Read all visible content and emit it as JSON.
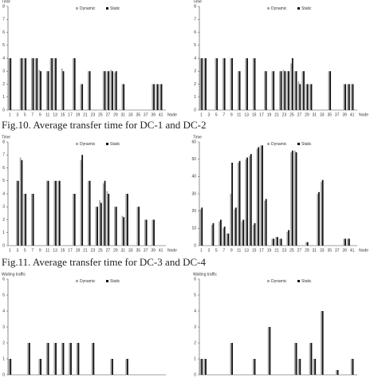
{
  "chart_data": [
    {
      "type": "bar",
      "y_label": "Time",
      "x_label": "Node",
      "categories": [
        1,
        null,
        3,
        null,
        5,
        null,
        7,
        null,
        9,
        null,
        11,
        null,
        13,
        null,
        15,
        null,
        17,
        null,
        19,
        null,
        21,
        null,
        23,
        null,
        25,
        null,
        27,
        null,
        29,
        null,
        31,
        null,
        33,
        null,
        35,
        null,
        37,
        null,
        39,
        null,
        41
      ],
      "ylim": [
        0,
        8
      ],
      "yticks": [
        0,
        1,
        2,
        3,
        4,
        5,
        6,
        7,
        8
      ],
      "series": [
        {
          "name": "Dynamic",
          "color": "#aaaaaa",
          "values": [
            4,
            0,
            0,
            4,
            4,
            0,
            4,
            4,
            3.1,
            0,
            3,
            4,
            4,
            0,
            3.2,
            0,
            0,
            4,
            0,
            2,
            0,
            3,
            0,
            0,
            0,
            3,
            3,
            3.1,
            2.9,
            0,
            2,
            0,
            0,
            0,
            0,
            0,
            0,
            0,
            2,
            2,
            2
          ]
        },
        {
          "name": "Static",
          "color": "#111111",
          "values": [
            4,
            0,
            0,
            4,
            4,
            0,
            4,
            4,
            3,
            0,
            3,
            4,
            4,
            0,
            3,
            0,
            0,
            4,
            0,
            2,
            0,
            3,
            0,
            0,
            0,
            3,
            3,
            3,
            3,
            0,
            2,
            0,
            0,
            0,
            0,
            0,
            0,
            0,
            2,
            2,
            2
          ]
        }
      ]
    },
    {
      "type": "bar",
      "y_label": "Time",
      "x_label": "Node",
      "categories": [
        1,
        null,
        3,
        null,
        5,
        null,
        7,
        null,
        9,
        null,
        11,
        null,
        13,
        null,
        15,
        null,
        17,
        null,
        19,
        null,
        21,
        null,
        23,
        null,
        25,
        null,
        27,
        null,
        29,
        null,
        31,
        null,
        33,
        null,
        35,
        null,
        37,
        null,
        39,
        null,
        41
      ],
      "ylim": [
        0,
        8
      ],
      "yticks": [
        0,
        1,
        2,
        3,
        4,
        5,
        6,
        7,
        8
      ],
      "series": [
        {
          "name": "Dynamic",
          "color": "#aaaaaa",
          "values": [
            4,
            4,
            0,
            0,
            4,
            0,
            4,
            0,
            4,
            0,
            3,
            0,
            4,
            0,
            4,
            0,
            0,
            3,
            0,
            3,
            0,
            3,
            3.1,
            3,
            3.6,
            3,
            2.2,
            3,
            2,
            2,
            0,
            0,
            0,
            0,
            3,
            0,
            0,
            0,
            2,
            2,
            2
          ]
        },
        {
          "name": "Static",
          "color": "#111111",
          "values": [
            4,
            4,
            0,
            0,
            4,
            0,
            4,
            0,
            4,
            0,
            3,
            0,
            4,
            0,
            4,
            0,
            0,
            3,
            0,
            3,
            0,
            3,
            3,
            3,
            4,
            3,
            2,
            3,
            2,
            2,
            0,
            0,
            0,
            0,
            3,
            0,
            0,
            0,
            2,
            2,
            2
          ]
        }
      ]
    },
    {
      "type": "bar",
      "y_label": "Time",
      "x_label": "Node",
      "categories": [
        1,
        null,
        3,
        null,
        5,
        null,
        7,
        null,
        9,
        null,
        11,
        null,
        13,
        null,
        15,
        null,
        17,
        null,
        19,
        null,
        21,
        null,
        23,
        null,
        25,
        null,
        27,
        null,
        29,
        null,
        31,
        null,
        33,
        null,
        35,
        null,
        37,
        null,
        39,
        null,
        41
      ],
      "ylim": [
        0,
        8
      ],
      "yticks": [
        0,
        1,
        2,
        3,
        4,
        5,
        6,
        7,
        8
      ],
      "series": [
        {
          "name": "Dynamic",
          "color": "#aaaaaa",
          "values": [
            0,
            0,
            5,
            6.8,
            4,
            0,
            4,
            0,
            0,
            0,
            5,
            0,
            5,
            5,
            0,
            0,
            0,
            4,
            0,
            6.6,
            0,
            5,
            0,
            3,
            3.5,
            4.8,
            4.2,
            0,
            3,
            0,
            2.3,
            4,
            0,
            0,
            3,
            0,
            2,
            0,
            2,
            0,
            0
          ]
        },
        {
          "name": "Static",
          "color": "#111111",
          "values": [
            0,
            0,
            5,
            6.6,
            4,
            0,
            4,
            0,
            0,
            0,
            5,
            0,
            5,
            5,
            0,
            0,
            0,
            4,
            0,
            7,
            0,
            5,
            0,
            3,
            3.3,
            5,
            4,
            0,
            3,
            0,
            2.2,
            4,
            0,
            0,
            3,
            0,
            2,
            0,
            2,
            0,
            0
          ]
        }
      ]
    },
    {
      "type": "bar",
      "y_label": "Time",
      "x_label": "Node",
      "categories": [
        1,
        null,
        3,
        null,
        5,
        null,
        7,
        null,
        9,
        null,
        11,
        null,
        13,
        null,
        15,
        null,
        17,
        null,
        19,
        null,
        21,
        null,
        23,
        null,
        25,
        null,
        27,
        null,
        29,
        null,
        31,
        null,
        33,
        null,
        35,
        null,
        37,
        null,
        39,
        null,
        41
      ],
      "ylim": [
        0,
        60
      ],
      "yticks": [
        0,
        10,
        20,
        30,
        40,
        50,
        60
      ],
      "series": [
        {
          "name": "Dynamic",
          "color": "#aaaaaa",
          "values": [
            21,
            0,
            0,
            12,
            0,
            14,
            10,
            7,
            30,
            21,
            48,
            14,
            50,
            52,
            12,
            56,
            58,
            26,
            0,
            4,
            5,
            4,
            0,
            8,
            54,
            55,
            0,
            0,
            2,
            0,
            0,
            30,
            37,
            0,
            0,
            0,
            0,
            0,
            4,
            4,
            0
          ]
        },
        {
          "name": "Static",
          "color": "#111111",
          "values": [
            22,
            0,
            0,
            13,
            0,
            15,
            11,
            7,
            48,
            22,
            49,
            15,
            51,
            53,
            13,
            57,
            58,
            27,
            0,
            4,
            5,
            4,
            0,
            9,
            55,
            54,
            0,
            0,
            2,
            0,
            0,
            31,
            38,
            0,
            0,
            0,
            0,
            0,
            4,
            4,
            0
          ]
        }
      ]
    },
    {
      "type": "bar",
      "y_label": "Waiting traffic",
      "ylim": [
        0,
        6
      ],
      "yticks": [
        0,
        1,
        2,
        3,
        4,
        5,
        6
      ],
      "series": [
        {
          "name": "Dynamic",
          "color": "#aaaaaa",
          "values": [
            1,
            0,
            0,
            0,
            0,
            2,
            0,
            0,
            1,
            0,
            2,
            0,
            2,
            0,
            2,
            0,
            2,
            0,
            2,
            0,
            0,
            0,
            2,
            0,
            0,
            0,
            0,
            1,
            0,
            0,
            0,
            1,
            0,
            0,
            0,
            0,
            0,
            0,
            0,
            0,
            0
          ]
        },
        {
          "name": "Static",
          "color": "#111111",
          "values": [
            1,
            0,
            0,
            0,
            0,
            2,
            0,
            0,
            1,
            0,
            2,
            0,
            2,
            0,
            2,
            0,
            2,
            0,
            2,
            0,
            0,
            0,
            2,
            0,
            0,
            0,
            0,
            1,
            0,
            0,
            0,
            1,
            0,
            0,
            0,
            0,
            0,
            0,
            0,
            0,
            0
          ]
        }
      ]
    },
    {
      "type": "bar",
      "y_label": "Waiting traffic",
      "ylim": [
        0,
        6
      ],
      "yticks": [
        0,
        1,
        2,
        3,
        4,
        5,
        6
      ],
      "series": [
        {
          "name": "Dynamic",
          "color": "#aaaaaa",
          "values": [
            1,
            1,
            0,
            0,
            0,
            0,
            0,
            0,
            2,
            0,
            0,
            0,
            0,
            0,
            1,
            0,
            0,
            0,
            3,
            0,
            0,
            0,
            0,
            0,
            0,
            2,
            1,
            0,
            0,
            2,
            1,
            0,
            4,
            0,
            0,
            0,
            0.3,
            0,
            0,
            0,
            1
          ]
        },
        {
          "name": "Static",
          "color": "#111111",
          "values": [
            1,
            1,
            0,
            0,
            0,
            0,
            0,
            0,
            2,
            0,
            0,
            0,
            0,
            0,
            1,
            0,
            0,
            0,
            3,
            0,
            0,
            0,
            0,
            0,
            0,
            2,
            1,
            0,
            0,
            2,
            1,
            0,
            4,
            0,
            0,
            0,
            0.3,
            0,
            0,
            0,
            1
          ]
        }
      ]
    }
  ],
  "captions": [
    "Fig.10. Average transfer time for DC-1 and DC-2",
    "Fig.11. Average transfer time for DC-3 and DC-4"
  ]
}
